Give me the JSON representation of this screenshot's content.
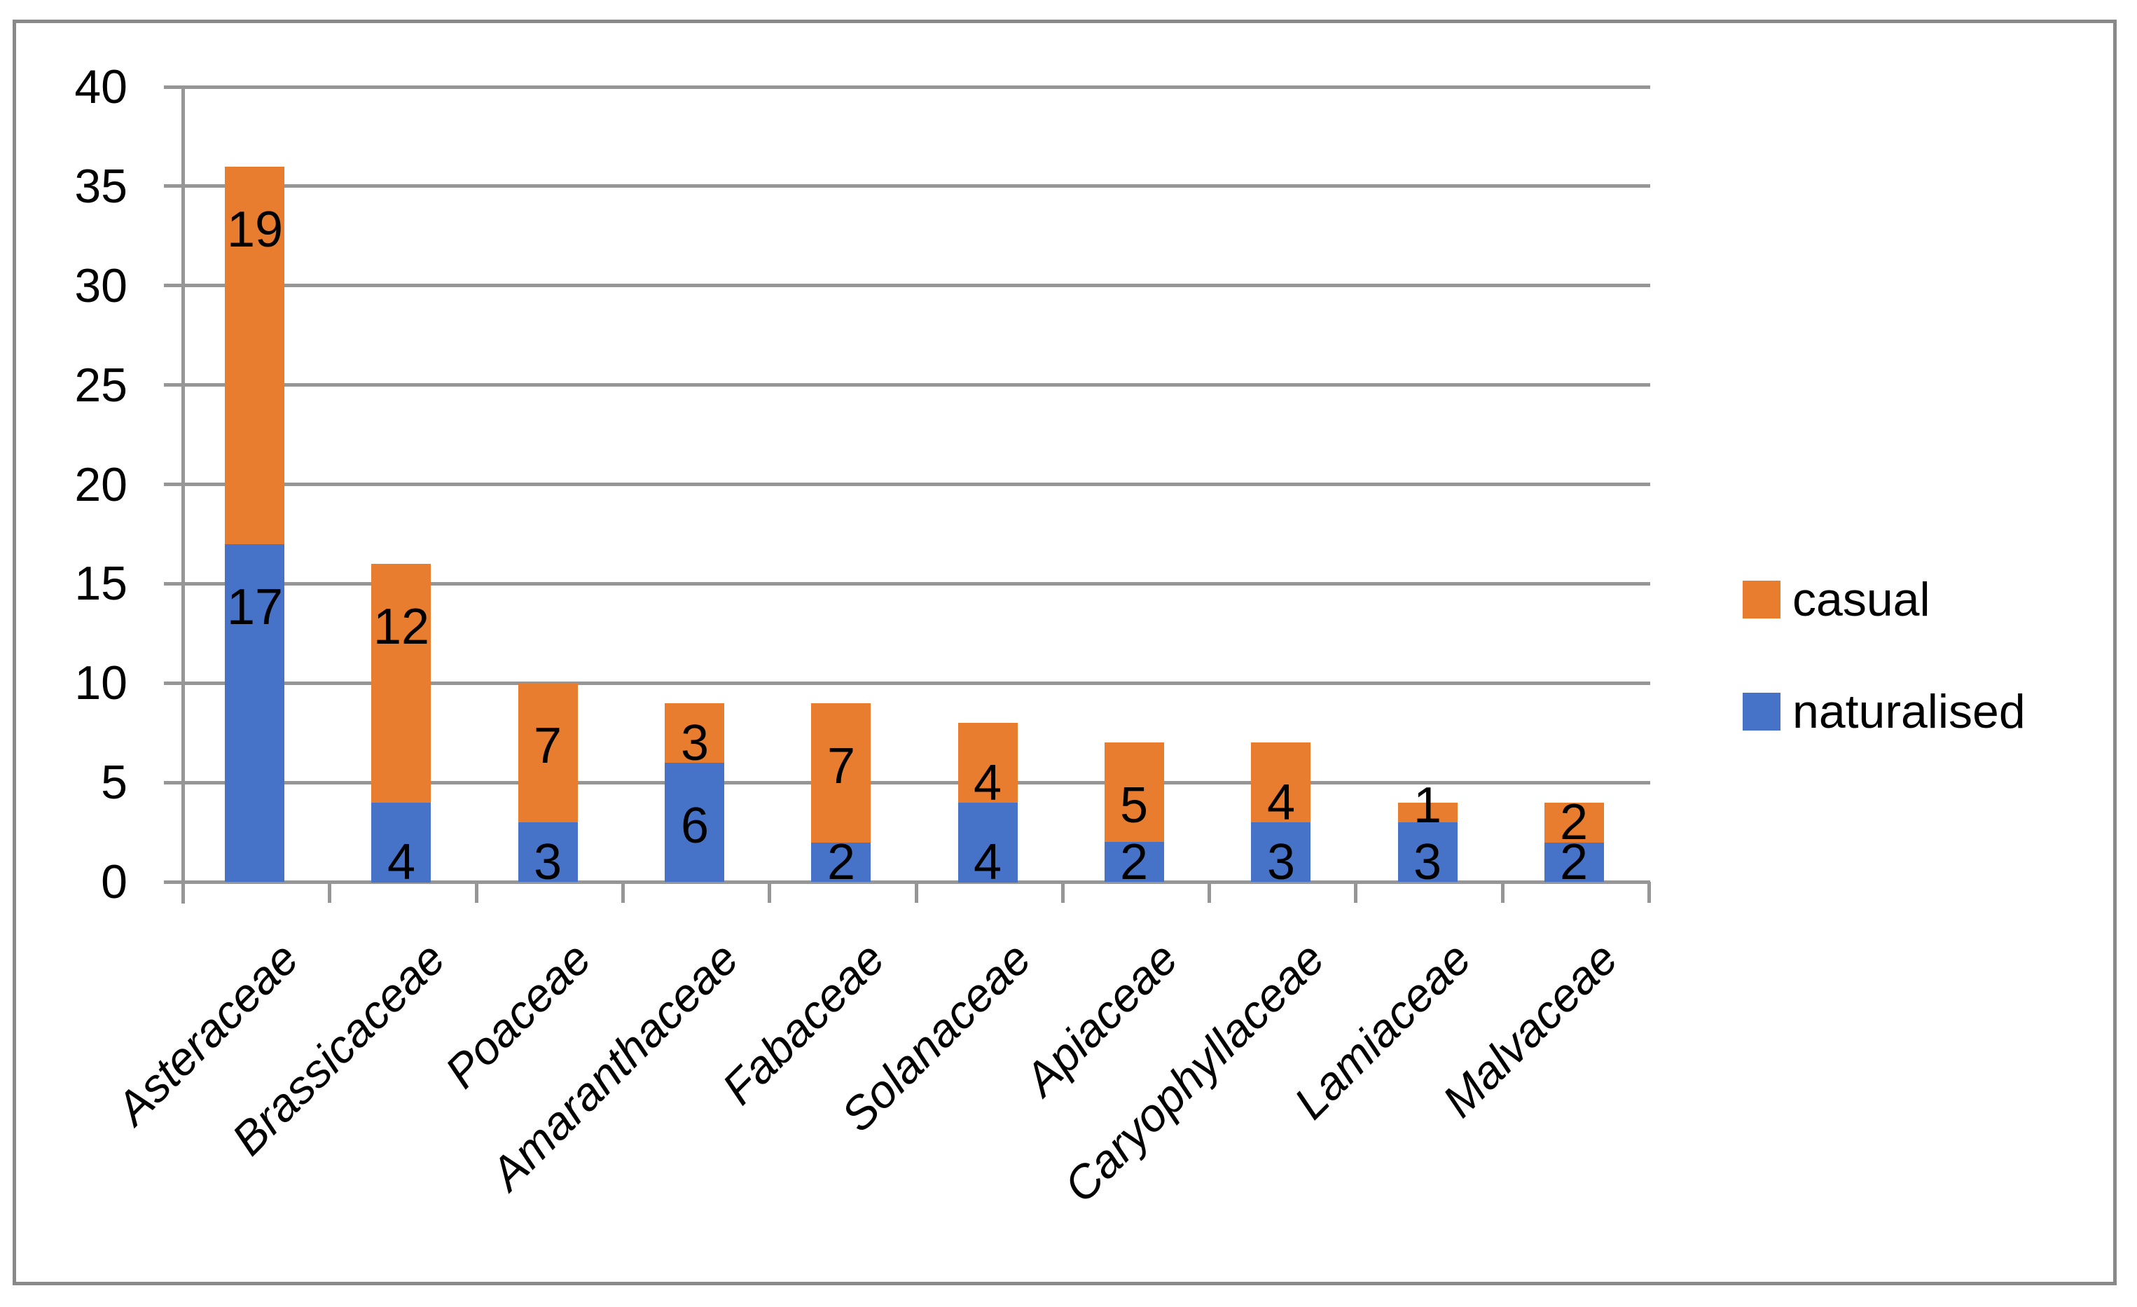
{
  "chart_data": {
    "type": "bar",
    "stacked": true,
    "title": "",
    "xlabel": "",
    "ylabel": "",
    "categories": [
      "Asteraceae",
      "Brassicaceae",
      "Poaceae",
      "Amaranthaceae",
      "Fabaceae",
      "Solanaceae",
      "Apiaceae",
      "Caryophyllaceae",
      "Lamiaceae",
      "Malvaceae"
    ],
    "series": [
      {
        "name": "naturalised",
        "color": "#4673C8",
        "values": [
          17,
          4,
          3,
          6,
          2,
          4,
          2,
          3,
          3,
          2
        ]
      },
      {
        "name": "casual",
        "color": "#E87D30",
        "values": [
          19,
          12,
          7,
          3,
          7,
          4,
          5,
          4,
          1,
          2
        ]
      }
    ],
    "totals": [
      36,
      16,
      10,
      9,
      9,
      8,
      7,
      7,
      4,
      4
    ],
    "data_labels_shown": true,
    "ylim": [
      0,
      40
    ],
    "ytick_step": 5,
    "yticks": [
      "0",
      "5",
      "10",
      "15",
      "20",
      "25",
      "30",
      "35",
      "40"
    ],
    "grid": true,
    "legend_position": "right",
    "legend": [
      {
        "label": "casual",
        "color": "#E87D30"
      },
      {
        "label": "naturalised",
        "color": "#4673C8"
      }
    ]
  },
  "colors": {
    "gridline": "#969696",
    "axis_line": "#969696",
    "chart_border": "#898989",
    "background": "#ffffff",
    "text": "#000000"
  }
}
